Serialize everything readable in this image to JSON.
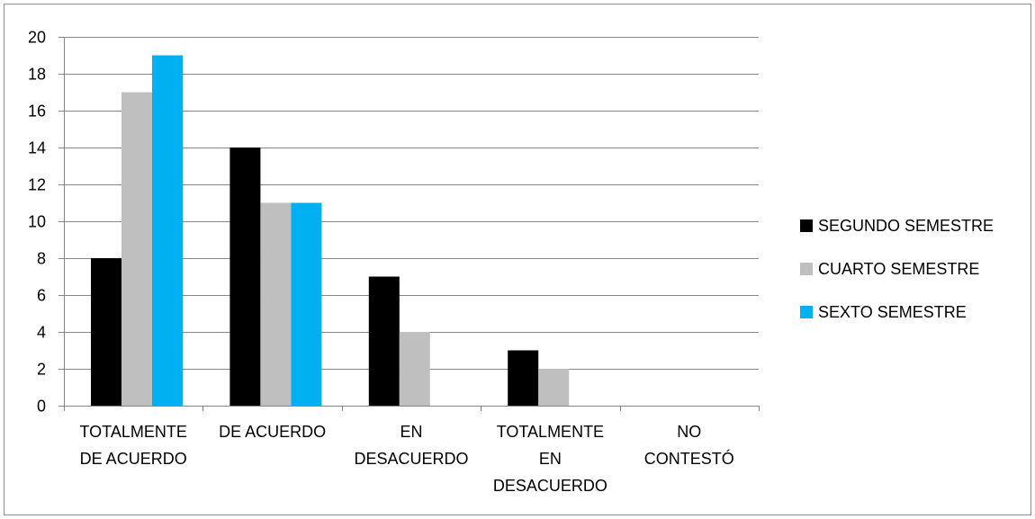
{
  "chart_data": {
    "type": "bar",
    "title": "",
    "xlabel": "",
    "ylabel": "",
    "ylim": [
      0,
      20
    ],
    "yticks": [
      0,
      2,
      4,
      6,
      8,
      10,
      12,
      14,
      16,
      18,
      20
    ],
    "grid": "horizontal",
    "legend_position": "right",
    "categories": [
      [
        "TOTALMENTE",
        "DE ACUERDO"
      ],
      [
        "DE ACUERDO"
      ],
      [
        "EN",
        "DESACUERDO"
      ],
      [
        "TOTALMENTE",
        "EN",
        "DESACUERDO"
      ],
      [
        "NO",
        "CONTESTÓ"
      ]
    ],
    "series": [
      {
        "name": "SEGUNDO SEMESTRE",
        "color": "#000000",
        "values": [
          8,
          14,
          7,
          3,
          0
        ]
      },
      {
        "name": "CUARTO SEMESTRE",
        "color": "#bfbfbf",
        "values": [
          17,
          11,
          4,
          2,
          0
        ]
      },
      {
        "name": "SEXTO SEMESTRE",
        "color": "#00b0f0",
        "values": [
          19,
          11,
          0,
          0,
          0
        ]
      }
    ],
    "colors": {
      "grid": "#868686",
      "axis": "#868686"
    }
  }
}
